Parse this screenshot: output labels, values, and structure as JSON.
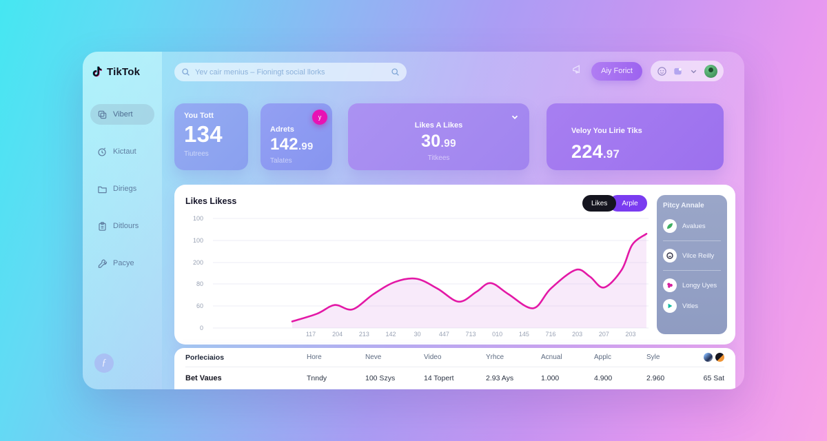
{
  "logo": {
    "name": "TikTok"
  },
  "header": {
    "search_placeholder": "Yev cair menius – Fioningt social llorks",
    "ai_button_label": "Aiy Forict"
  },
  "sidebar": {
    "items": [
      {
        "label": "Vibert",
        "icon": "copy-icon",
        "active": true
      },
      {
        "label": "Kictaut",
        "icon": "clock-icon",
        "active": false
      },
      {
        "label": "Diriegs",
        "icon": "folder-icon",
        "active": false
      },
      {
        "label": "Ditlours",
        "icon": "clipboard-icon",
        "active": false
      },
      {
        "label": "Pacye",
        "icon": "wrench-icon",
        "active": false
      }
    ],
    "footer_icon": "f-circle-icon"
  },
  "cards": [
    {
      "title": "You Tott",
      "value": "134",
      "fraction": "",
      "subtitle": "Tiutrees",
      "badge": "",
      "chevron": false
    },
    {
      "title": "Adrets",
      "value": "142",
      "fraction": ".99",
      "subtitle": "Talates",
      "badge": "y",
      "chevron": false
    },
    {
      "title": "Likes A Likes",
      "value": "30",
      "fraction": ".99",
      "subtitle": "Titkees",
      "badge": "",
      "chevron": true
    },
    {
      "title": "Veloy You Lirie Tiks",
      "value": "224",
      "fraction": ".97",
      "subtitle": "",
      "badge": "",
      "chevron": false
    }
  ],
  "chart_data": {
    "type": "area",
    "title": "Likes Likess",
    "legend": [
      {
        "label": "Likes",
        "active": true
      },
      {
        "label": "Arple",
        "active": false
      }
    ],
    "legend_position": "top-right",
    "grid": true,
    "y_ticks": [
      "100",
      "100",
      "200",
      "80",
      "60",
      "0"
    ],
    "x_ticks": [
      "117",
      "204",
      "213",
      "142",
      "30",
      "447",
      "713",
      "010",
      "145",
      "716",
      "203",
      "207",
      "203"
    ],
    "ylim": [
      0,
      105
    ],
    "line_color": "#e318a6",
    "fill_color": "rgba(222,150,230,0.20)",
    "series": [
      {
        "name": "Likes",
        "points": [
          [
            0,
            6
          ],
          [
            0.07,
            13
          ],
          [
            0.12,
            21
          ],
          [
            0.17,
            17
          ],
          [
            0.23,
            31
          ],
          [
            0.29,
            42
          ],
          [
            0.35,
            45
          ],
          [
            0.41,
            36
          ],
          [
            0.47,
            24
          ],
          [
            0.52,
            33
          ],
          [
            0.56,
            41
          ],
          [
            0.61,
            31
          ],
          [
            0.68,
            18
          ],
          [
            0.73,
            36
          ],
          [
            0.8,
            53
          ],
          [
            0.84,
            47
          ],
          [
            0.88,
            37
          ],
          [
            0.93,
            53
          ],
          [
            0.96,
            76
          ],
          [
            1,
            86
          ]
        ]
      }
    ]
  },
  "side_panel": {
    "title": "Pitcy Annale",
    "items": [
      {
        "label": "Avalues",
        "icon": "leaf-icon",
        "color": "#3fae62"
      },
      {
        "label": "Vilce Reilly",
        "icon": "smile-icon",
        "color": "#2e2e44"
      },
      {
        "label": "Longy Uyes",
        "icon": "flower-icon",
        "color": "#d4209f"
      },
      {
        "label": "Vitles",
        "icon": "play-icon",
        "color": "#12b8a0"
      }
    ]
  },
  "table": {
    "headers": [
      "Porleciaios",
      "Hore",
      "Neve",
      "Video",
      "Yrhce",
      "Acnual",
      "Applc",
      "Syle",
      ""
    ],
    "rows": [
      [
        "Bet Vaues",
        "Tnndy",
        "100 Szys",
        "14 Topert",
        "2.93 Ays",
        "1.000",
        "4.900",
        "2.960",
        "65 Sat"
      ]
    ]
  },
  "colors": {
    "accent_pink": "#e318a6",
    "toggle_active_bg": "#15151f",
    "toggle_alt_bg": "#7a3cf0",
    "badge_pink": "#e812b4"
  }
}
